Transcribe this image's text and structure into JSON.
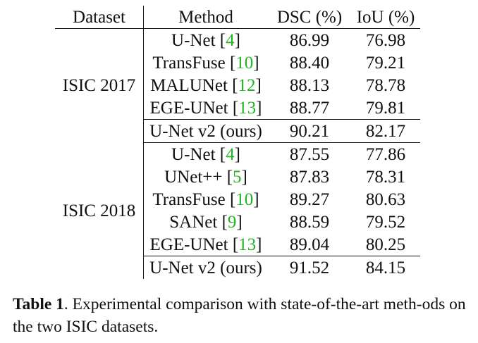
{
  "table": {
    "headers": {
      "dataset": "Dataset",
      "method": "Method",
      "dsc": "DSC (%)",
      "iou": "IoU (%)"
    },
    "groups": [
      {
        "dataset": "ISIC 2017",
        "rows": [
          {
            "method": "U-Net",
            "ref": "4",
            "dsc": "86.99",
            "iou": "76.98"
          },
          {
            "method": "TransFuse",
            "ref": "10",
            "dsc": "88.40",
            "iou": "79.21"
          },
          {
            "method": "MALUNet",
            "ref": "12",
            "dsc": "88.13",
            "iou": "78.78"
          },
          {
            "method": "EGE-UNet",
            "ref": "13",
            "dsc": "88.77",
            "iou": "79.81"
          },
          {
            "method": "U-Net v2 (ours)",
            "dsc": "90.21",
            "iou": "82.17"
          }
        ]
      },
      {
        "dataset": "ISIC 2018",
        "rows": [
          {
            "method": "U-Net",
            "ref": "4",
            "dsc": "87.55",
            "iou": "77.86"
          },
          {
            "method": "UNet++",
            "ref": "5",
            "dsc": "87.83",
            "iou": "78.31"
          },
          {
            "method": "TransFuse",
            "ref": "10",
            "dsc": "89.27",
            "iou": "80.63"
          },
          {
            "method": "SANet",
            "ref": "9",
            "dsc": "88.59",
            "iou": "79.52"
          },
          {
            "method": "EGE-UNet",
            "ref": "13",
            "dsc": "89.04",
            "iou": "80.25"
          },
          {
            "method": "U-Net v2 (ours)",
            "dsc": "91.52",
            "iou": "84.15"
          }
        ]
      }
    ]
  },
  "caption": {
    "label": "Table 1",
    "text": ". Experimental comparison with state-of-the-art meth-ods on the two ISIC datasets."
  },
  "colors": {
    "reference_link": "#22b422",
    "text": "#111111"
  }
}
